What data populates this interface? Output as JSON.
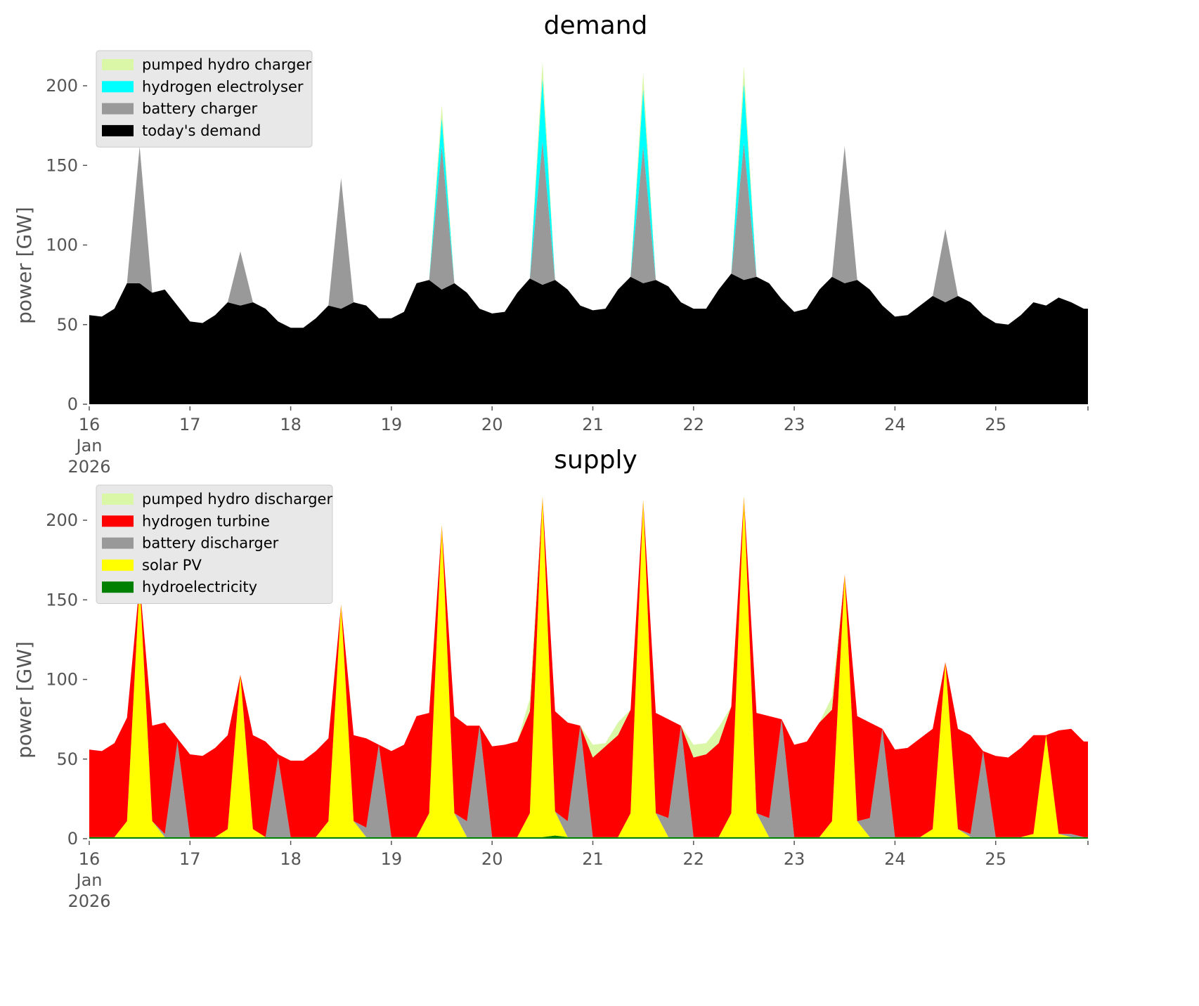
{
  "chart_data": [
    {
      "type": "area",
      "stacked": true,
      "title": "demand",
      "xlabel": "",
      "ylabel": "power [GW]",
      "ylim": [
        0,
        220
      ],
      "yticks": [
        0,
        50,
        100,
        150,
        200
      ],
      "xlim_days": [
        16,
        25.92
      ],
      "xticks": [
        {
          "day": 16,
          "label": [
            "16",
            "Jan",
            "2026"
          ]
        },
        {
          "day": 17,
          "label": [
            "17"
          ]
        },
        {
          "day": 18,
          "label": [
            "18"
          ]
        },
        {
          "day": 19,
          "label": [
            "19"
          ]
        },
        {
          "day": 20,
          "label": [
            "20"
          ]
        },
        {
          "day": 21,
          "label": [
            "21"
          ]
        },
        {
          "day": 22,
          "label": [
            "22"
          ]
        },
        {
          "day": 23,
          "label": [
            "23"
          ]
        },
        {
          "day": 24,
          "label": [
            "24"
          ]
        },
        {
          "day": 25,
          "label": [
            "25"
          ]
        }
      ],
      "grid": false,
      "legend_position": "top-left",
      "x_start": "2026-01-16",
      "x_step_hours": 3,
      "series": [
        {
          "name": "today's demand",
          "color": "#000000",
          "values": [
            56,
            55,
            60,
            76,
            76,
            70,
            72,
            62,
            52,
            51,
            56,
            64,
            62,
            64,
            60,
            52,
            48,
            48,
            54,
            62,
            60,
            64,
            62,
            54,
            54,
            58,
            76,
            78,
            72,
            76,
            70,
            60,
            57,
            58,
            70,
            79,
            75,
            78,
            72,
            62,
            59,
            60,
            72,
            80,
            76,
            78,
            74,
            64,
            60,
            60,
            72,
            82,
            78,
            80,
            76,
            66,
            58,
            60,
            72,
            80,
            76,
            78,
            72,
            62,
            55,
            56,
            62,
            68,
            64,
            68,
            64,
            56,
            51,
            50,
            56,
            64,
            62,
            67,
            64,
            60
          ]
        },
        {
          "name": "battery charger",
          "color": "#999999",
          "values": [
            0,
            0,
            0,
            0,
            86,
            0,
            0,
            0,
            0,
            0,
            0,
            0,
            34,
            0,
            0,
            0,
            0,
            0,
            0,
            0,
            82,
            0,
            0,
            0,
            0,
            0,
            0,
            0,
            90,
            0,
            0,
            0,
            0,
            0,
            0,
            0,
            90,
            0,
            0,
            0,
            0,
            0,
            0,
            0,
            86,
            0,
            0,
            0,
            0,
            0,
            0,
            0,
            86,
            0,
            0,
            0,
            0,
            0,
            0,
            0,
            86,
            0,
            0,
            0,
            0,
            0,
            0,
            0,
            46,
            0,
            0,
            0,
            0,
            0,
            0,
            0,
            0,
            0,
            0,
            0
          ]
        },
        {
          "name": "hydrogen electrolyser",
          "color": "#00ffff",
          "values": [
            0,
            0,
            0,
            0,
            0,
            0,
            0,
            0,
            0,
            0,
            0,
            0,
            0,
            0,
            0,
            0,
            0,
            0,
            0,
            0,
            0,
            0,
            0,
            0,
            0,
            0,
            0,
            0,
            18,
            0,
            0,
            0,
            0,
            0,
            0,
            0,
            40,
            0,
            0,
            0,
            0,
            0,
            0,
            0,
            36,
            0,
            0,
            0,
            0,
            0,
            0,
            0,
            38,
            0,
            0,
            0,
            0,
            0,
            0,
            0,
            0,
            0,
            0,
            0,
            0,
            0,
            0,
            0,
            0,
            0,
            0,
            0,
            0,
            0,
            0,
            0,
            0,
            0,
            0,
            0
          ]
        },
        {
          "name": "pumped hydro charger",
          "color": "#d9f7a6",
          "values": [
            0,
            0,
            0,
            0,
            0,
            0,
            0,
            0,
            0,
            0,
            0,
            0,
            0,
            0,
            0,
            0,
            0,
            0,
            0,
            0,
            0,
            0,
            0,
            0,
            0,
            0,
            0,
            0,
            8,
            0,
            0,
            0,
            0,
            0,
            0,
            0,
            10,
            0,
            0,
            0,
            0,
            0,
            0,
            0,
            10,
            0,
            0,
            0,
            0,
            0,
            0,
            0,
            10,
            0,
            0,
            0,
            0,
            0,
            0,
            0,
            0,
            0,
            0,
            0,
            0,
            0,
            0,
            0,
            0,
            0,
            0,
            0,
            0,
            0,
            0,
            0,
            0,
            0,
            0,
            0
          ]
        }
      ],
      "legend": [
        "pumped hydro charger",
        "hydrogen electrolyser",
        "battery charger",
        "today's demand"
      ]
    },
    {
      "type": "area",
      "stacked": true,
      "title": "supply",
      "xlabel": "",
      "ylabel": "power [GW]",
      "ylim": [
        0,
        220
      ],
      "yticks": [
        0,
        50,
        100,
        150,
        200
      ],
      "xlim_days": [
        16,
        25.92
      ],
      "xticks": [
        {
          "day": 16,
          "label": [
            "16",
            "Jan",
            "2026"
          ]
        },
        {
          "day": 17,
          "label": [
            "17"
          ]
        },
        {
          "day": 18,
          "label": [
            "18"
          ]
        },
        {
          "day": 19,
          "label": [
            "19"
          ]
        },
        {
          "day": 20,
          "label": [
            "20"
          ]
        },
        {
          "day": 21,
          "label": [
            "21"
          ]
        },
        {
          "day": 22,
          "label": [
            "22"
          ]
        },
        {
          "day": 23,
          "label": [
            "23"
          ]
        },
        {
          "day": 24,
          "label": [
            "24"
          ]
        },
        {
          "day": 25,
          "label": [
            "25"
          ]
        }
      ],
      "grid": false,
      "legend_position": "top-left",
      "x_start": "2026-01-16",
      "x_step_hours": 3,
      "series": [
        {
          "name": "hydroelectricity",
          "color": "#008000",
          "values": [
            1,
            1,
            1,
            1,
            1,
            1,
            1,
            1,
            1,
            1,
            1,
            1,
            1,
            1,
            1,
            1,
            1,
            1,
            1,
            1,
            1,
            1,
            1,
            1,
            1,
            1,
            1,
            1,
            1,
            1,
            1,
            1,
            1,
            1,
            1,
            1,
            1,
            2,
            1,
            1,
            1,
            1,
            1,
            1,
            1,
            1,
            1,
            1,
            1,
            1,
            1,
            1,
            1,
            1,
            1,
            1,
            1,
            1,
            1,
            1,
            1,
            1,
            1,
            1,
            1,
            1,
            1,
            1,
            1,
            1,
            1,
            1,
            1,
            1,
            1,
            1,
            1,
            1,
            1,
            1
          ]
        },
        {
          "name": "solar PV",
          "color": "#ffff00",
          "values": [
            0,
            0,
            0,
            10,
            160,
            10,
            0,
            0,
            0,
            0,
            0,
            5,
            102,
            5,
            0,
            0,
            0,
            0,
            0,
            10,
            146,
            10,
            0,
            0,
            0,
            0,
            0,
            15,
            196,
            15,
            0,
            0,
            0,
            0,
            0,
            15,
            214,
            15,
            0,
            0,
            0,
            0,
            0,
            15,
            212,
            15,
            0,
            0,
            0,
            0,
            0,
            15,
            214,
            15,
            0,
            0,
            0,
            0,
            0,
            10,
            165,
            10,
            0,
            0,
            0,
            0,
            0,
            5,
            110,
            5,
            0,
            0,
            0,
            0,
            0,
            2,
            64,
            2,
            0,
            0
          ]
        },
        {
          "name": "battery discharger",
          "color": "#999999",
          "values": [
            0,
            0,
            0,
            0,
            0,
            0,
            2,
            60,
            0,
            0,
            0,
            0,
            0,
            0,
            0,
            50,
            0,
            0,
            0,
            0,
            0,
            0,
            6,
            58,
            0,
            0,
            0,
            0,
            0,
            0,
            10,
            70,
            0,
            0,
            0,
            0,
            0,
            0,
            10,
            70,
            0,
            0,
            0,
            0,
            0,
            0,
            12,
            70,
            0,
            0,
            0,
            0,
            0,
            0,
            12,
            74,
            0,
            0,
            0,
            0,
            0,
            0,
            12,
            68,
            0,
            0,
            0,
            0,
            0,
            0,
            2,
            54,
            0,
            0,
            0,
            0,
            0,
            0,
            2,
            0
          ]
        },
        {
          "name": "hydrogen turbine",
          "color": "#ff0000",
          "values": [
            55,
            54,
            59,
            65,
            0,
            60,
            70,
            2,
            52,
            51,
            56,
            59,
            0,
            59,
            60,
            2,
            48,
            48,
            54,
            52,
            0,
            54,
            56,
            0,
            54,
            58,
            76,
            63,
            0,
            61,
            60,
            0,
            57,
            58,
            60,
            64,
            0,
            63,
            62,
            0,
            50,
            57,
            64,
            65,
            0,
            63,
            62,
            0,
            50,
            52,
            59,
            67,
            0,
            63,
            64,
            0,
            58,
            60,
            72,
            70,
            0,
            66,
            60,
            0,
            55,
            56,
            62,
            63,
            0,
            63,
            62,
            0,
            51,
            50,
            56,
            62,
            0,
            65,
            66,
            60
          ]
        },
        {
          "name": "pumped hydro discharger",
          "color": "#d9f7a6",
          "values": [
            0,
            0,
            0,
            0,
            0,
            0,
            0,
            0,
            0,
            0,
            0,
            0,
            0,
            0,
            0,
            0,
            0,
            0,
            0,
            0,
            0,
            0,
            0,
            0,
            0,
            0,
            0,
            0,
            0,
            0,
            0,
            0,
            0,
            0,
            0,
            8,
            0,
            0,
            0,
            0,
            8,
            2,
            8,
            0,
            0,
            0,
            0,
            0,
            8,
            7,
            10,
            0,
            0,
            0,
            0,
            0,
            0,
            0,
            0,
            8,
            0,
            0,
            0,
            0,
            0,
            0,
            0,
            0,
            0,
            0,
            0,
            0,
            0,
            0,
            0,
            0,
            0,
            0,
            0,
            0
          ]
        }
      ],
      "legend": [
        "pumped hydro discharger",
        "hydrogen turbine",
        "battery discharger",
        "solar PV",
        "hydroelectricity"
      ]
    }
  ]
}
